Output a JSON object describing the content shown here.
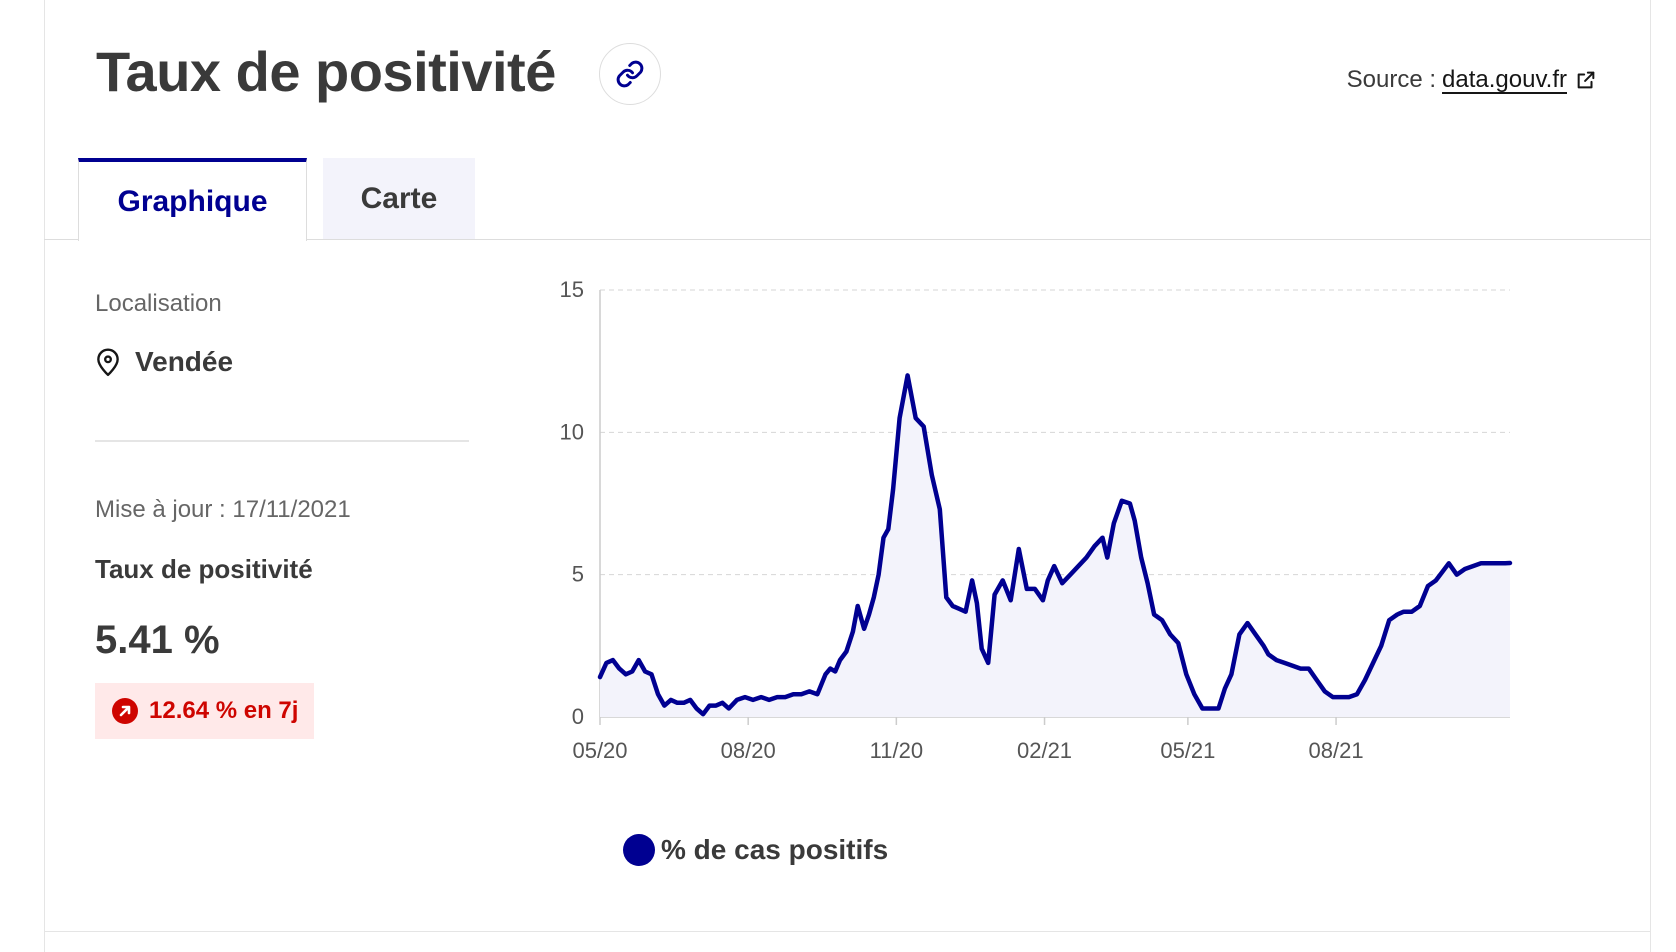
{
  "header": {
    "title": "Taux de positivité",
    "link_icon": "link-icon",
    "source_prefix": "Source :",
    "source_link": "data.gouv.fr",
    "external_icon": "external-link-icon"
  },
  "tabs": [
    {
      "label": "Graphique",
      "active": true
    },
    {
      "label": "Carte",
      "active": false
    }
  ],
  "panel": {
    "location_label": "Localisation",
    "location_icon": "map-pin-icon",
    "location_value": "Vendée",
    "updated": "Mise à jour : 17/11/2021",
    "metric_label": "Taux de positivité",
    "metric_value": "5.41 %",
    "trend_icon": "arrow-up-right-icon",
    "trend_text": "12.64 % en 7j",
    "trend_color": "#ce0500"
  },
  "colors": {
    "accent": "#000091",
    "fill": "#f3f3fb",
    "grid": "#d6d6d6",
    "axis": "#cccccc",
    "text": "#3a3a3a"
  },
  "chart_data": {
    "type": "line",
    "title": "",
    "xlabel": "",
    "ylabel": "",
    "ylim": [
      0,
      15
    ],
    "yticks": [
      0,
      5,
      10,
      15
    ],
    "xtick_labels": [
      "05/20",
      "08/20",
      "11/20",
      "02/21",
      "05/21",
      "08/21"
    ],
    "xtick_dates": [
      "2020-05-01",
      "2020-08-01",
      "2020-11-01",
      "2021-02-01",
      "2021-05-01",
      "2021-08-01"
    ],
    "x_start": "2020-05-01",
    "x_end": "2021-11-17",
    "grid": "horizontal dashed",
    "legend": "bottom",
    "series": [
      {
        "name": "% de cas positifs",
        "color": "#000091",
        "x": [
          "2020-05-01",
          "2020-05-05",
          "2020-05-09",
          "2020-05-13",
          "2020-05-17",
          "2020-05-21",
          "2020-05-25",
          "2020-05-29",
          "2020-06-02",
          "2020-06-06",
          "2020-06-10",
          "2020-06-14",
          "2020-06-18",
          "2020-06-22",
          "2020-06-26",
          "2020-06-30",
          "2020-07-04",
          "2020-07-08",
          "2020-07-12",
          "2020-07-16",
          "2020-07-20",
          "2020-07-25",
          "2020-07-30",
          "2020-08-04",
          "2020-08-09",
          "2020-08-14",
          "2020-08-19",
          "2020-08-24",
          "2020-08-29",
          "2020-09-03",
          "2020-09-08",
          "2020-09-13",
          "2020-09-18",
          "2020-09-21",
          "2020-09-24",
          "2020-09-27",
          "2020-10-01",
          "2020-10-05",
          "2020-10-08",
          "2020-10-12",
          "2020-10-15",
          "2020-10-18",
          "2020-10-21",
          "2020-10-24",
          "2020-10-27",
          "2020-10-30",
          "2020-11-03",
          "2020-11-08",
          "2020-11-13",
          "2020-11-18",
          "2020-11-23",
          "2020-11-28",
          "2020-12-02",
          "2020-12-06",
          "2020-12-10",
          "2020-12-14",
          "2020-12-18",
          "2020-12-21",
          "2020-12-24",
          "2020-12-28",
          "2021-01-01",
          "2021-01-06",
          "2021-01-11",
          "2021-01-16",
          "2021-01-21",
          "2021-01-26",
          "2021-01-31",
          "2021-02-03",
          "2021-02-07",
          "2021-02-12",
          "2021-02-17",
          "2021-02-22",
          "2021-02-27",
          "2021-03-04",
          "2021-03-09",
          "2021-03-12",
          "2021-03-16",
          "2021-03-21",
          "2021-03-26",
          "2021-03-29",
          "2021-04-02",
          "2021-04-06",
          "2021-04-10",
          "2021-04-15",
          "2021-04-20",
          "2021-04-25",
          "2021-04-30",
          "2021-05-05",
          "2021-05-10",
          "2021-05-15",
          "2021-05-20",
          "2021-05-24",
          "2021-05-28",
          "2021-06-02",
          "2021-06-07",
          "2021-06-12",
          "2021-06-17",
          "2021-06-20",
          "2021-06-25",
          "2021-06-30",
          "2021-07-05",
          "2021-07-10",
          "2021-07-15",
          "2021-07-20",
          "2021-07-25",
          "2021-07-30",
          "2021-08-04",
          "2021-08-09",
          "2021-08-14",
          "2021-08-19",
          "2021-08-24",
          "2021-08-29",
          "2021-09-03",
          "2021-09-08",
          "2021-09-12",
          "2021-09-17",
          "2021-09-22",
          "2021-09-27",
          "2021-10-02",
          "2021-10-06",
          "2021-10-10",
          "2021-10-15",
          "2021-10-20",
          "2021-10-25",
          "2021-10-30",
          "2021-11-04",
          "2021-11-09",
          "2021-11-14",
          "2021-11-17"
        ],
        "values": [
          1.4,
          1.9,
          2.0,
          1.7,
          1.5,
          1.6,
          2.0,
          1.6,
          1.5,
          0.8,
          0.4,
          0.6,
          0.5,
          0.5,
          0.6,
          0.3,
          0.1,
          0.4,
          0.4,
          0.5,
          0.3,
          0.6,
          0.7,
          0.6,
          0.7,
          0.6,
          0.7,
          0.7,
          0.8,
          0.8,
          0.9,
          0.8,
          1.5,
          1.7,
          1.6,
          2.0,
          2.3,
          3.0,
          3.9,
          3.1,
          3.6,
          4.2,
          5.0,
          6.3,
          6.6,
          8.0,
          10.5,
          12.0,
          10.5,
          10.2,
          8.5,
          7.3,
          4.2,
          3.9,
          3.8,
          3.7,
          4.8,
          4.0,
          2.4,
          1.9,
          4.3,
          4.8,
          4.1,
          5.9,
          4.5,
          4.5,
          4.1,
          4.8,
          5.3,
          4.7,
          5.0,
          5.3,
          5.6,
          6.0,
          6.3,
          5.6,
          6.8,
          7.6,
          7.5,
          6.9,
          5.6,
          4.7,
          3.6,
          3.4,
          2.9,
          2.6,
          1.5,
          0.8,
          0.3,
          0.3,
          0.3,
          1.0,
          1.5,
          2.9,
          3.3,
          2.9,
          2.5,
          2.2,
          2.0,
          1.9,
          1.8,
          1.7,
          1.7,
          1.3,
          0.9,
          0.7,
          0.7,
          0.7,
          0.8,
          1.3,
          1.9,
          2.5,
          3.4,
          3.6,
          3.7,
          3.7,
          3.9,
          4.6,
          4.8,
          5.1,
          5.4,
          5.0,
          5.2,
          5.3,
          5.4,
          5.4,
          5.4,
          5.4,
          5.41
        ]
      }
    ]
  }
}
